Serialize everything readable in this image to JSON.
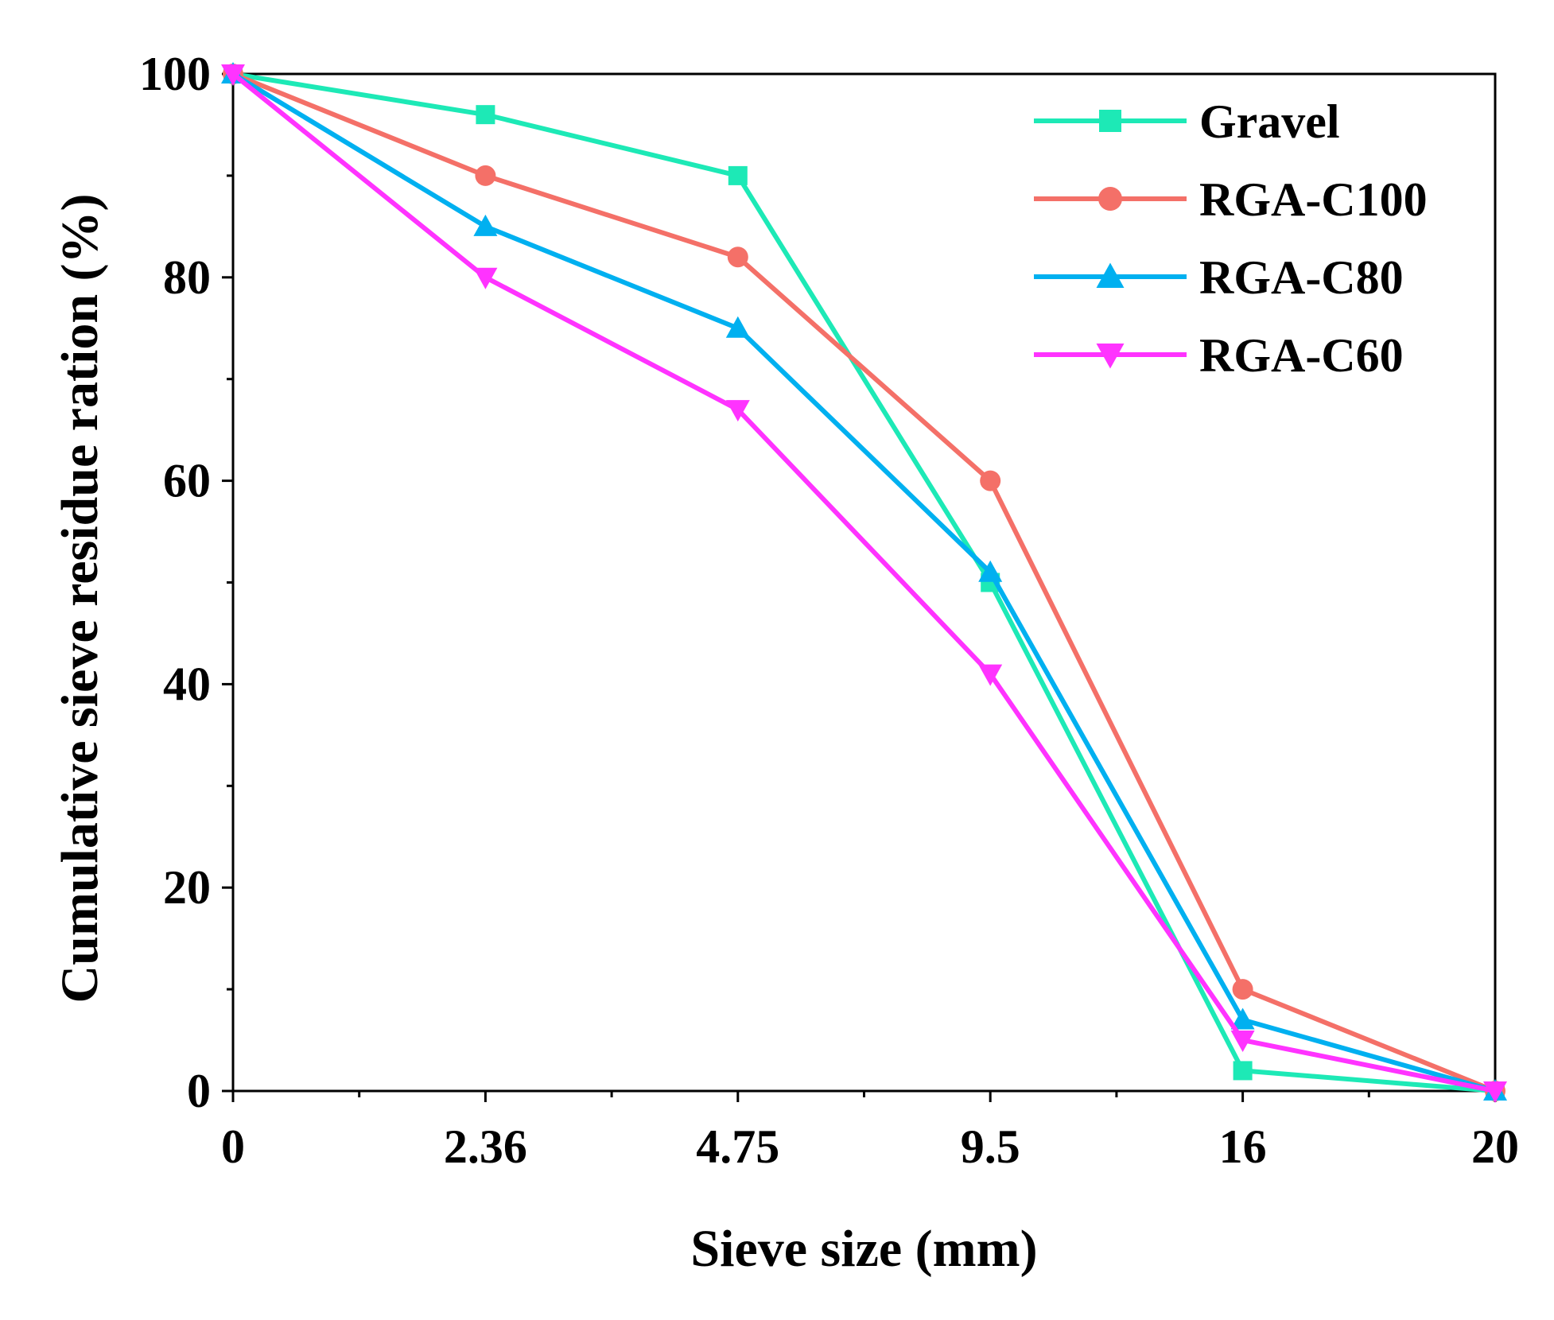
{
  "chart_data": {
    "type": "line",
    "categories": [
      "0",
      "2.36",
      "4.75",
      "9.5",
      "16",
      "20"
    ],
    "xlabel": "Sieve size (mm)",
    "ylabel": "Cumulative sieve residue ration (%)",
    "ylim": [
      0,
      100
    ],
    "yticks": [
      "0",
      "20",
      "40",
      "60",
      "80",
      "100"
    ],
    "grid": false,
    "legend_position": "top-right",
    "series": [
      {
        "name": "Gravel",
        "color": "#1de9b6",
        "marker": "square",
        "values": [
          100,
          96,
          90,
          50,
          2,
          0
        ]
      },
      {
        "name": "RGA-C100",
        "color": "#f47068",
        "marker": "circle",
        "values": [
          100,
          90,
          82,
          60,
          10,
          0
        ]
      },
      {
        "name": "RGA-C80",
        "color": "#00b0f0",
        "marker": "triangle-up",
        "values": [
          100,
          85,
          75,
          51,
          7,
          0
        ]
      },
      {
        "name": "RGA-C60",
        "color": "#ff33ff",
        "marker": "triangle-down",
        "values": [
          100,
          80,
          67,
          41,
          5,
          0
        ]
      }
    ]
  }
}
